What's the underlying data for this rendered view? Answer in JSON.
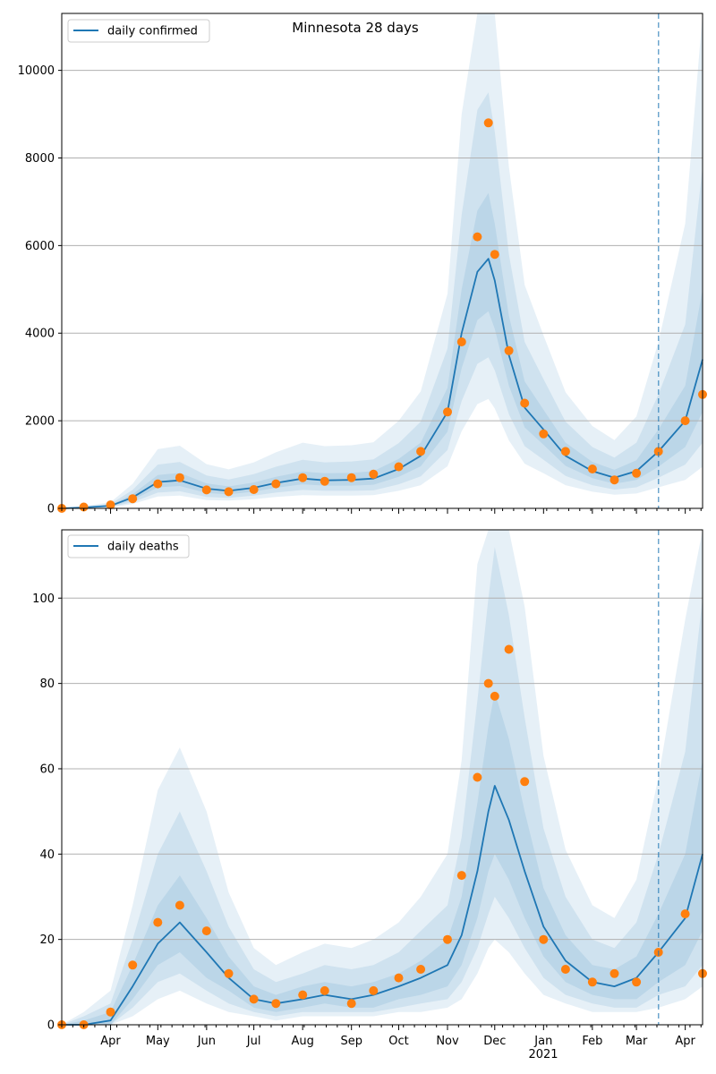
{
  "chart_data": [
    {
      "type": "line",
      "title": "Minnesota 28 days",
      "legend": {
        "label": "daily confirmed",
        "placement": "top-left"
      },
      "ylim": [
        0,
        11300
      ],
      "yticks": [
        0,
        2000,
        4000,
        6000,
        8000,
        10000
      ],
      "grid": "horizontal",
      "x_dates": [
        "2020-03-01",
        "2020-03-15",
        "2020-04-01",
        "2020-04-15",
        "2020-05-01",
        "2020-05-15",
        "2020-06-01",
        "2020-06-15",
        "2020-07-01",
        "2020-07-15",
        "2020-08-01",
        "2020-08-15",
        "2020-09-01",
        "2020-09-15",
        "2020-10-01",
        "2020-10-15",
        "2020-11-01",
        "2020-11-10",
        "2020-11-20",
        "2020-11-27",
        "2020-12-01",
        "2020-12-10",
        "2020-12-20",
        "2021-01-01",
        "2021-01-15",
        "2021-02-01",
        "2021-02-15",
        "2021-03-01",
        "2021-03-15",
        "2021-04-01",
        "2021-04-12"
      ],
      "series": [
        {
          "name": "daily confirmed",
          "role": "median",
          "color": "#1f77b4",
          "values": [
            0,
            20,
            60,
            250,
            600,
            640,
            450,
            400,
            470,
            580,
            680,
            640,
            650,
            680,
            900,
            1200,
            2200,
            4000,
            5400,
            5700,
            5200,
            3500,
            2300,
            1800,
            1200,
            850,
            700,
            850,
            1300,
            2000,
            3400
          ]
        },
        {
          "name": "band 50%",
          "role": "band",
          "lower": [
            0,
            15,
            45,
            190,
            480,
            510,
            350,
            320,
            380,
            470,
            550,
            520,
            520,
            540,
            720,
            960,
            1750,
            3200,
            4300,
            4500,
            4100,
            2800,
            1850,
            1450,
            970,
            690,
            560,
            650,
            950,
            1400,
            2200
          ],
          "upper": [
            0,
            25,
            75,
            320,
            760,
            810,
            570,
            500,
            590,
            720,
            840,
            800,
            810,
            850,
            1130,
            1500,
            2750,
            5000,
            6800,
            7200,
            6500,
            4400,
            2900,
            2250,
            1500,
            1060,
            880,
            1100,
            1800,
            2800,
            5000
          ]
        },
        {
          "name": "band 80%",
          "role": "band",
          "lower": [
            0,
            10,
            30,
            140,
            360,
            390,
            260,
            240,
            290,
            360,
            420,
            400,
            400,
            410,
            550,
            730,
            1330,
            2450,
            3300,
            3450,
            3150,
            2150,
            1420,
            1110,
            740,
            530,
            430,
            480,
            700,
            1000,
            1500
          ],
          "upper": [
            0,
            35,
            100,
            420,
            1000,
            1060,
            750,
            660,
            780,
            950,
            1110,
            1050,
            1070,
            1120,
            1490,
            1980,
            3650,
            6700,
            9100,
            9500,
            8600,
            5800,
            3800,
            2950,
            1980,
            1400,
            1160,
            1500,
            2600,
            4200,
            7800
          ]
        },
        {
          "name": "band 95%",
          "role": "band",
          "lower": [
            0,
            5,
            20,
            100,
            270,
            290,
            190,
            180,
            210,
            260,
            300,
            290,
            290,
            300,
            400,
            530,
            960,
            1760,
            2380,
            2500,
            2280,
            1550,
            1020,
            800,
            530,
            380,
            310,
            340,
            480,
            650,
            950
          ],
          "upper": [
            0,
            50,
            140,
            560,
            1350,
            1430,
            1010,
            890,
            1050,
            1280,
            1500,
            1420,
            1440,
            1510,
            2000,
            2670,
            4900,
            9000,
            12000,
            13000,
            11500,
            7800,
            5100,
            3950,
            2650,
            1880,
            1560,
            2100,
            3800,
            6500,
            12500
          ]
        },
        {
          "name": "observations",
          "role": "scatter",
          "color": "#ff7f0e",
          "values": [
            0,
            30,
            80,
            220,
            560,
            700,
            420,
            380,
            430,
            560,
            700,
            620,
            700,
            780,
            950,
            1300,
            2200,
            3800,
            6200,
            8800,
            5800,
            3600,
            2400,
            1700,
            1300,
            900,
            650,
            800,
            1300,
            2000,
            2600
          ]
        }
      ],
      "vline": {
        "date": "2021-03-15",
        "style": "dashed",
        "color": "#1f77b4"
      }
    },
    {
      "type": "line",
      "title": "",
      "legend": {
        "label": "daily deaths",
        "placement": "top-left"
      },
      "ylim": [
        0,
        116
      ],
      "yticks": [
        0,
        20,
        40,
        60,
        80,
        100
      ],
      "grid": "horizontal",
      "x_dates": [
        "2020-03-01",
        "2020-03-15",
        "2020-04-01",
        "2020-04-15",
        "2020-05-01",
        "2020-05-15",
        "2020-06-01",
        "2020-06-15",
        "2020-07-01",
        "2020-07-15",
        "2020-08-01",
        "2020-08-15",
        "2020-09-01",
        "2020-09-15",
        "2020-10-01",
        "2020-10-15",
        "2020-11-01",
        "2020-11-10",
        "2020-11-20",
        "2020-11-27",
        "2020-12-01",
        "2020-12-10",
        "2020-12-20",
        "2021-01-01",
        "2021-01-15",
        "2021-02-01",
        "2021-02-15",
        "2021-03-01",
        "2021-03-15",
        "2021-04-01",
        "2021-04-12"
      ],
      "series": [
        {
          "name": "daily deaths",
          "role": "median",
          "color": "#1f77b4",
          "values": [
            0,
            0,
            1,
            9,
            19,
            24,
            17,
            11,
            6,
            5,
            6,
            7,
            6,
            7,
            9,
            11,
            14,
            21,
            36,
            50,
            56,
            48,
            36,
            23,
            15,
            10,
            9,
            11,
            17,
            25,
            40
          ]
        },
        {
          "name": "band 50%",
          "role": "band",
          "lower": [
            0,
            0,
            0,
            6,
            14,
            17,
            11,
            8,
            4,
            3,
            4,
            5,
            4,
            4,
            6,
            7,
            9,
            14,
            25,
            36,
            40,
            34,
            25,
            16,
            10,
            7,
            6,
            6,
            10,
            14,
            22
          ],
          "upper": [
            0,
            1,
            3,
            14,
            28,
            35,
            25,
            16,
            9,
            7,
            9,
            10,
            9,
            10,
            12,
            15,
            20,
            30,
            52,
            70,
            78,
            67,
            50,
            32,
            21,
            14,
            13,
            16,
            26,
            40,
            62
          ]
        },
        {
          "name": "band 80%",
          "role": "band",
          "lower": [
            0,
            0,
            0,
            4,
            10,
            12,
            8,
            5,
            3,
            2,
            3,
            3,
            3,
            3,
            4,
            5,
            6,
            10,
            18,
            26,
            30,
            25,
            18,
            11,
            7,
            5,
            4,
            4,
            7,
            9,
            14
          ],
          "upper": [
            0,
            2,
            5,
            20,
            40,
            50,
            36,
            23,
            13,
            10,
            12,
            14,
            13,
            14,
            17,
            22,
            28,
            44,
            76,
            100,
            112,
            96,
            72,
            46,
            30,
            20,
            18,
            24,
            40,
            64,
            100
          ]
        },
        {
          "name": "band 95%",
          "role": "band",
          "lower": [
            0,
            0,
            0,
            2,
            6,
            8,
            5,
            3,
            2,
            1,
            2,
            2,
            2,
            2,
            3,
            3,
            4,
            6,
            12,
            18,
            20,
            17,
            12,
            7,
            5,
            3,
            3,
            3,
            4,
            6,
            9
          ],
          "upper": [
            0,
            3,
            8,
            28,
            55,
            65,
            50,
            31,
            18,
            14,
            17,
            19,
            18,
            20,
            24,
            30,
            40,
            62,
            108,
            140,
            155,
            132,
            98,
            63,
            41,
            28,
            25,
            34,
            58,
            95,
            150
          ]
        },
        {
          "name": "observations",
          "role": "scatter",
          "color": "#ff7f0e",
          "values": [
            0,
            0,
            3,
            14,
            24,
            28,
            22,
            12,
            6,
            5,
            7,
            8,
            5,
            8,
            11,
            13,
            20,
            35,
            58,
            80,
            77,
            88,
            57,
            20,
            13,
            10,
            12,
            10,
            17,
            26,
            12
          ]
        }
      ],
      "vline": {
        "date": "2021-03-15",
        "style": "dashed",
        "color": "#1f77b4"
      }
    }
  ],
  "x_axis": {
    "start": "2020-03-01",
    "end": "2021-04-12",
    "months": [
      {
        "label": "Apr",
        "date": "2020-04-01"
      },
      {
        "label": "May",
        "date": "2020-05-01"
      },
      {
        "label": "Jun",
        "date": "2020-06-01"
      },
      {
        "label": "Jul",
        "date": "2020-07-01"
      },
      {
        "label": "Aug",
        "date": "2020-08-01"
      },
      {
        "label": "Sep",
        "date": "2020-09-01"
      },
      {
        "label": "Oct",
        "date": "2020-10-01"
      },
      {
        "label": "Nov",
        "date": "2020-11-01"
      },
      {
        "label": "Dec",
        "date": "2020-12-01"
      },
      {
        "label": "Jan",
        "date": "2021-01-01"
      },
      {
        "label": "Feb",
        "date": "2021-02-01"
      },
      {
        "label": "Mar",
        "date": "2021-03-01"
      },
      {
        "label": "Apr",
        "date": "2021-04-01"
      }
    ],
    "year_label": "2021"
  },
  "colors": {
    "median": "#1f77b4",
    "observations": "#ff7f0e",
    "band": "#1f77b4",
    "grid": "#b0b0b0"
  }
}
